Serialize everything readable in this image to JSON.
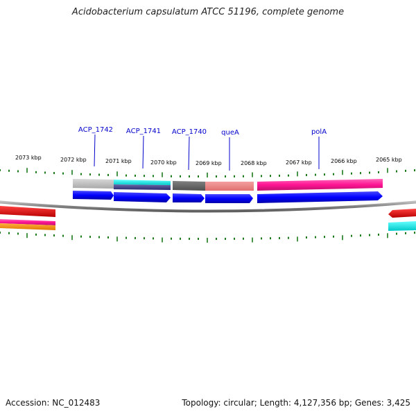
{
  "title": "Acidobacterium capsulatum ATCC 51196, complete genome",
  "footer": {
    "accession": "Accession: NC_012483",
    "summary": "Topology: circular; Length: 4,127,356 bp; Genes: 3,425"
  },
  "colors": {
    "gene_label": "#0000cc",
    "tick": "#1a7a1a",
    "backbone": "#888888",
    "cds": "#0000ff"
  },
  "ticks": [
    {
      "label": "2073 kbp"
    },
    {
      "label": "2072 kbp"
    },
    {
      "label": "2071 kbp"
    },
    {
      "label": "2070 kbp"
    },
    {
      "label": "2069 kbp"
    },
    {
      "label": "2068 kbp"
    },
    {
      "label": "2067 kbp"
    },
    {
      "label": "2066 kbp"
    },
    {
      "label": "2065 kbp"
    }
  ],
  "genes": [
    {
      "label": "ACP_1742"
    },
    {
      "label": "ACP_1741"
    },
    {
      "label": "ACP_1740"
    },
    {
      "label": "queA"
    },
    {
      "label": "polA"
    }
  ]
}
